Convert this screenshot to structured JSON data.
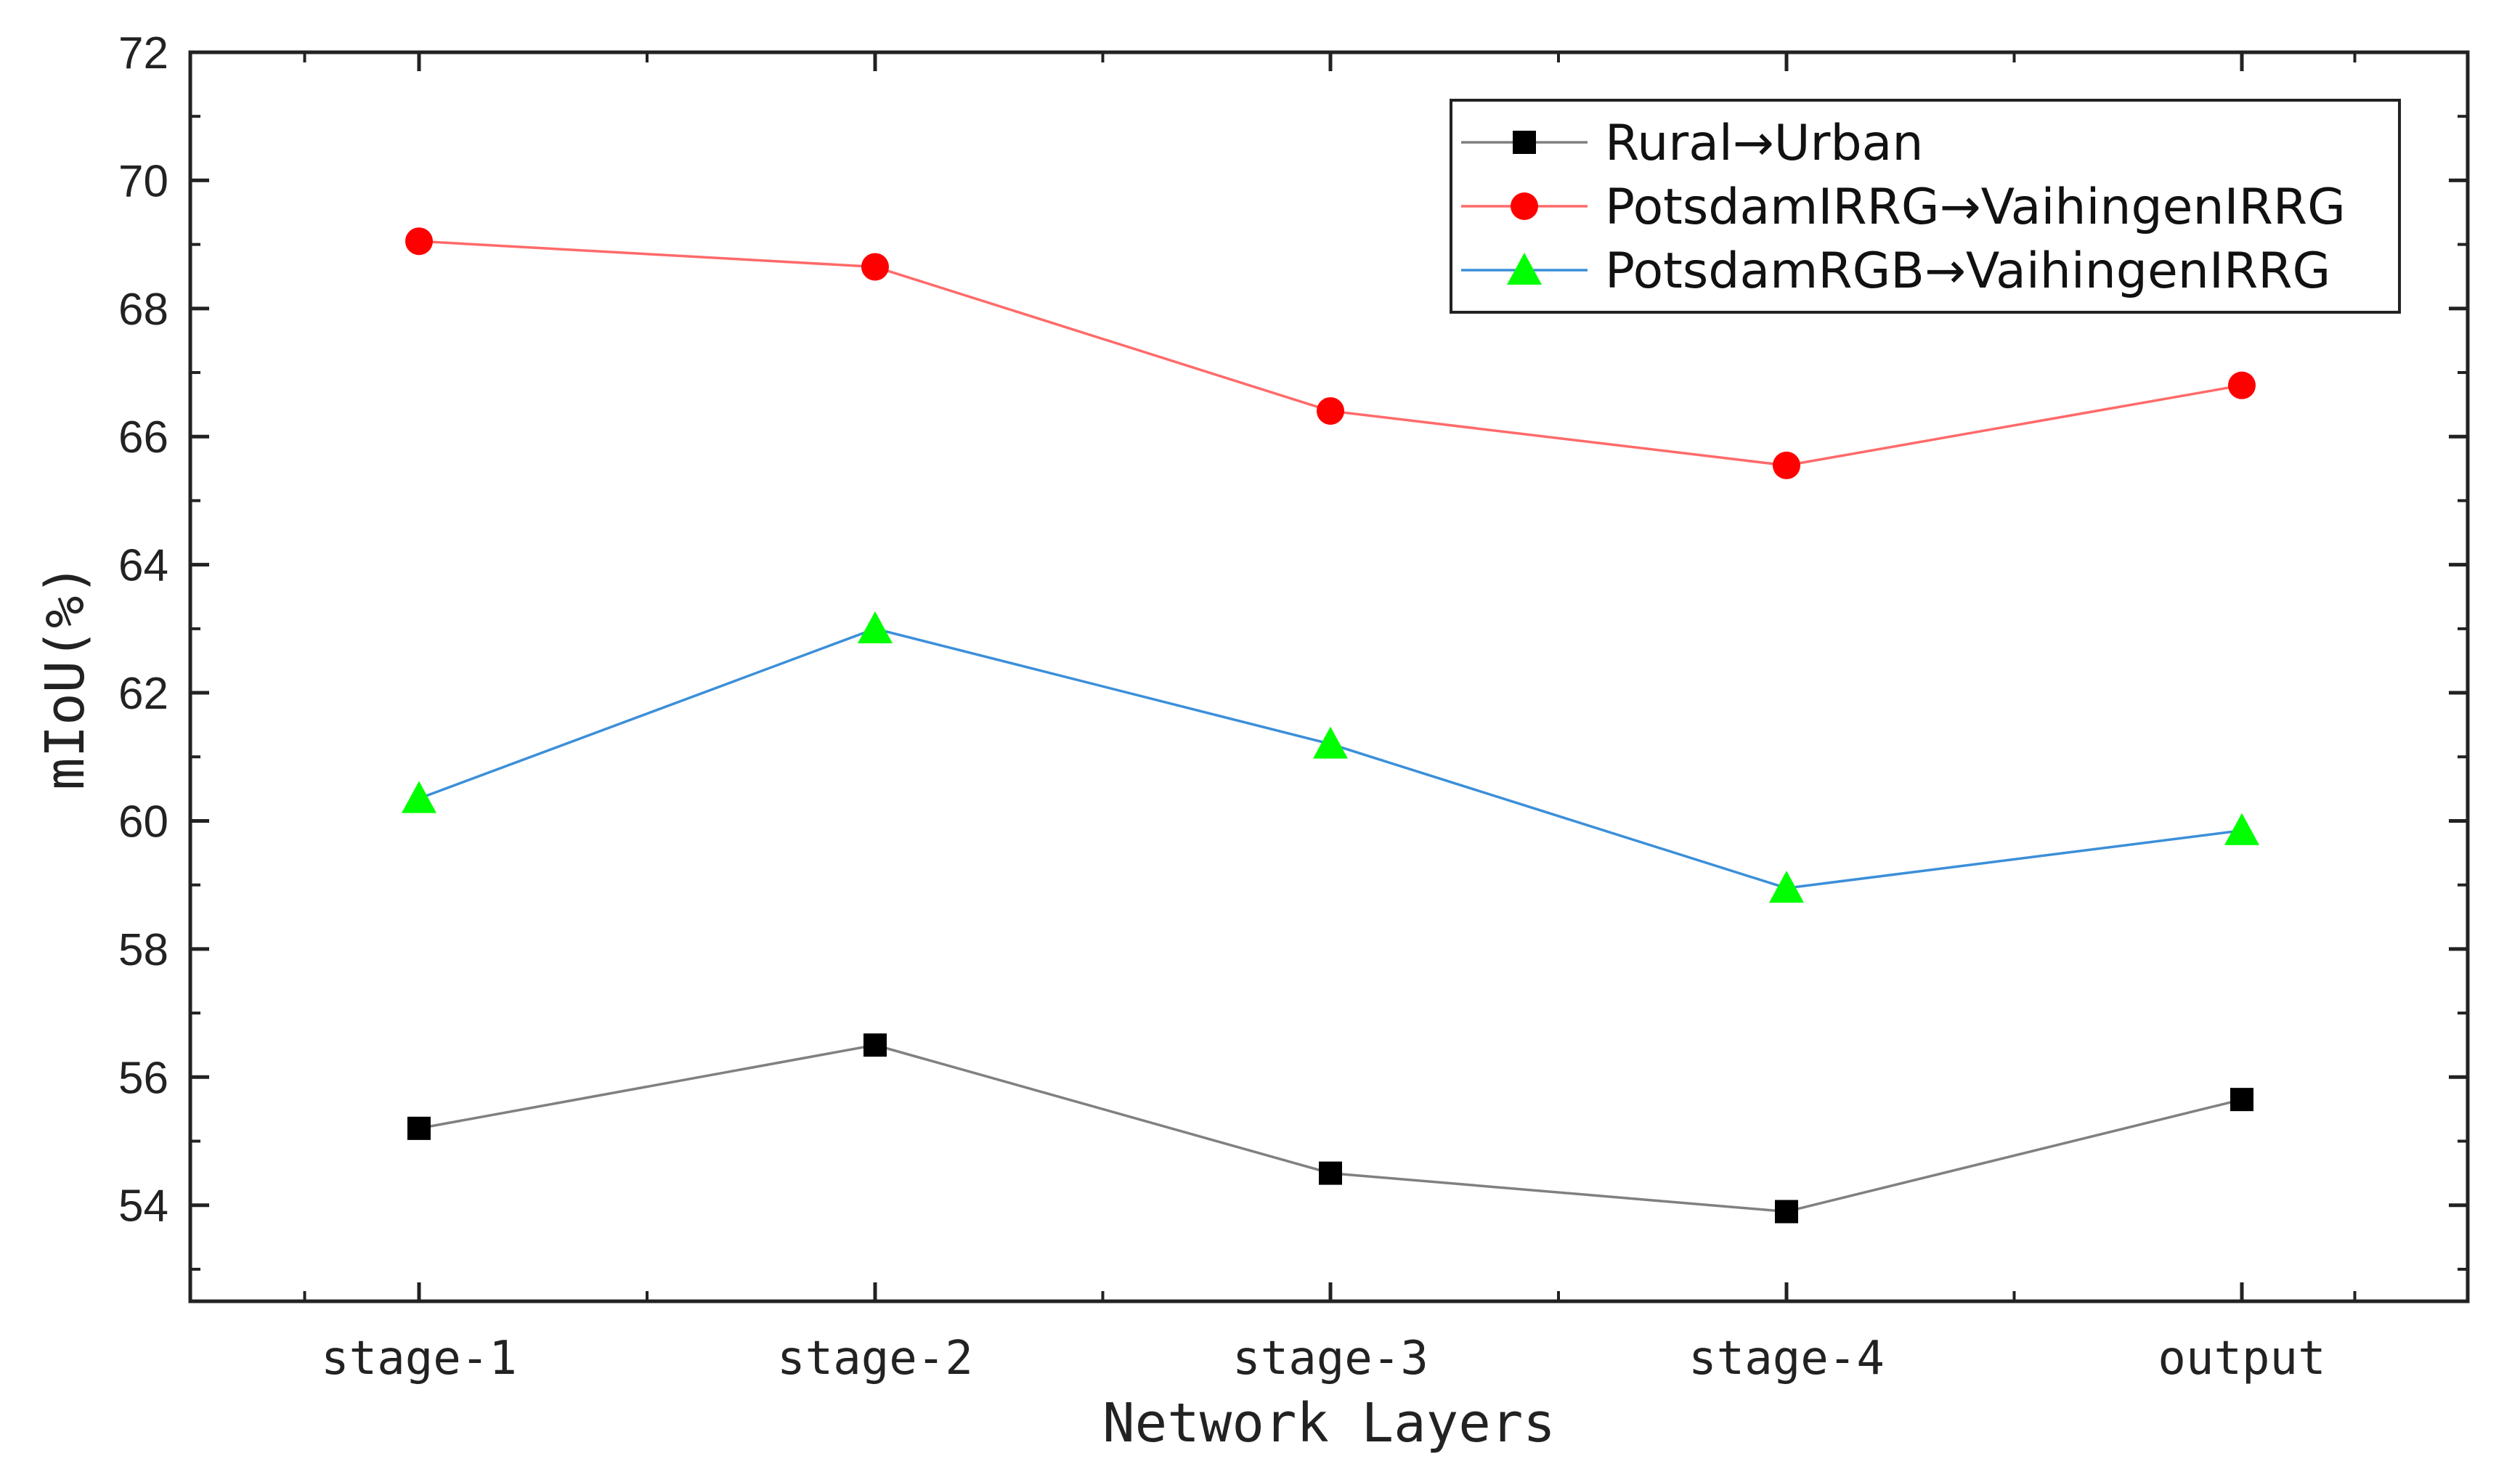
{
  "chart_data": {
    "type": "line",
    "title": "",
    "xlabel": "Network Layers",
    "ylabel": "mIoU(%)",
    "categories": [
      "stage-1",
      "stage-2",
      "stage-3",
      "stage-4",
      "output"
    ],
    "ylim": [
      52.5,
      72
    ],
    "yticks": [
      54,
      56,
      58,
      60,
      62,
      64,
      66,
      68,
      70,
      72
    ],
    "grid": false,
    "legend_position": "top-right",
    "series": [
      {
        "name": "Rural→Urban",
        "marker": "square",
        "line_color": "#808080",
        "marker_color": "#000000",
        "values": [
          55.2,
          56.5,
          54.5,
          53.9,
          55.65
        ]
      },
      {
        "name": "PotsdamIRRG→VaihingenIRRG",
        "marker": "circle",
        "line_color": "#ff6a6a",
        "marker_color": "#ff0000",
        "values": [
          69.05,
          68.65,
          66.4,
          65.55,
          66.8
        ]
      },
      {
        "name": "PotsdamRGB→VaihingenIRRG",
        "marker": "triangle",
        "line_color": "#3b8fd9",
        "marker_color": "#00ff00",
        "values": [
          60.35,
          63.0,
          61.2,
          58.95,
          59.85
        ]
      }
    ]
  }
}
